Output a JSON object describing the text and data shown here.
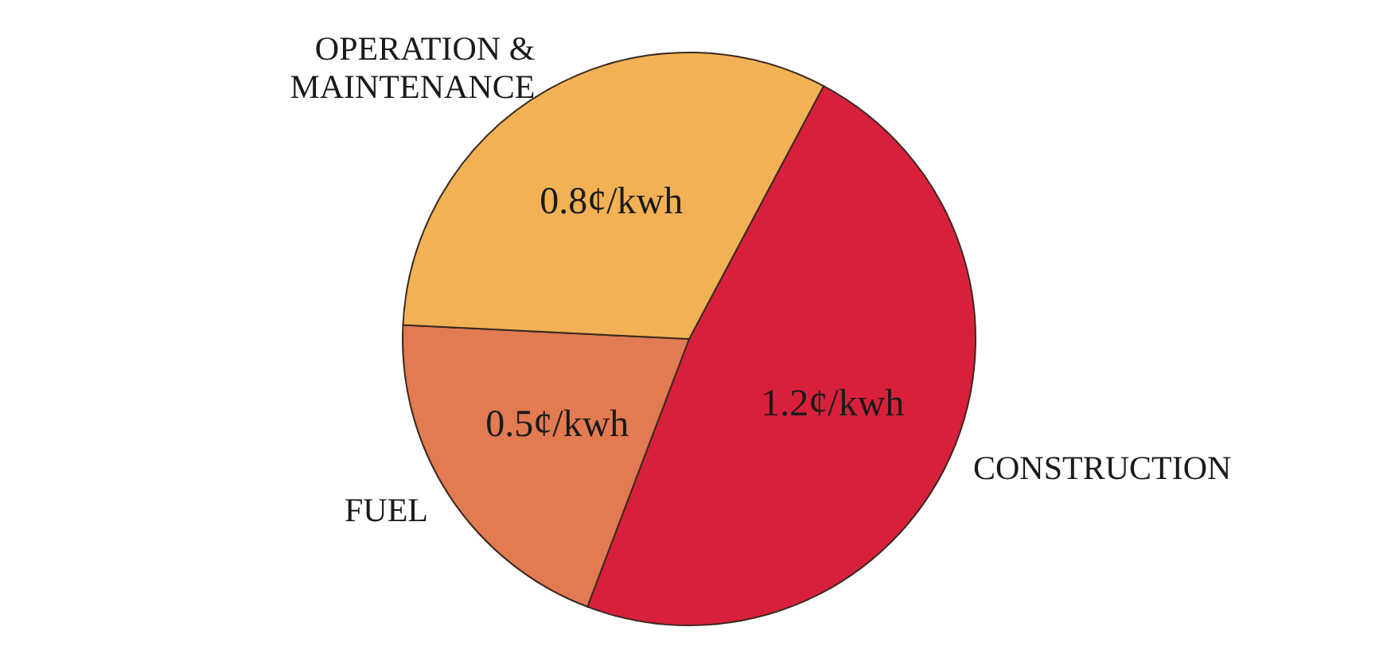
{
  "chart_data": {
    "type": "pie",
    "categories": [
      "CONSTRUCTION",
      "FUEL",
      "OPERATION & MAINTENANCE"
    ],
    "values": [
      1.2,
      0.5,
      0.8
    ],
    "colors": [
      "#d8203c",
      "#e27a52",
      "#f2b154"
    ],
    "value_labels": [
      "1.2¢/kwh",
      "0.5¢/kwh",
      "0.8¢/kwh"
    ]
  }
}
